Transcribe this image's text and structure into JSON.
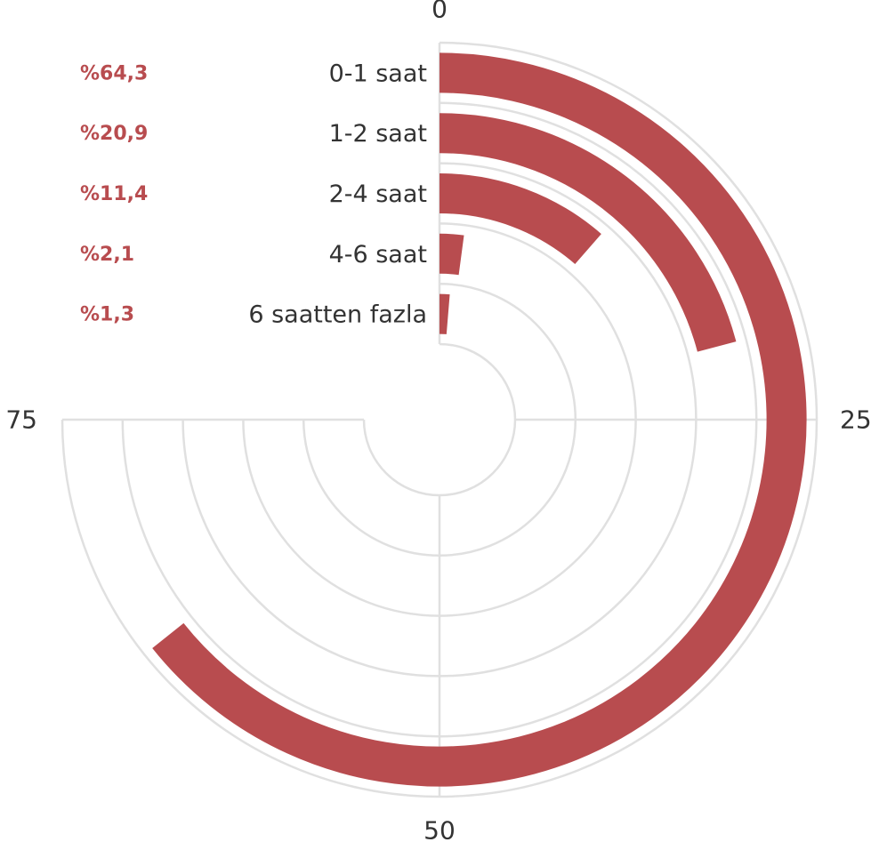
{
  "chart_data": {
    "type": "radial-bar",
    "categories": [
      "0-1 saat",
      "1-2 saat",
      "2-4 saat",
      "4-6 saat",
      "6 saatten fazla"
    ],
    "values": [
      64.3,
      20.9,
      11.4,
      2.1,
      1.3
    ],
    "data_labels": [
      "%64,3",
      "%20,9",
      "%11,4",
      "%2,1",
      "%1,3"
    ],
    "angular_axis": {
      "range": [
        0,
        100
      ],
      "shown_extent": [
        0,
        75
      ],
      "tick_labels": [
        "0",
        "25",
        "50",
        "75"
      ],
      "direction": "clockwise",
      "start": "top"
    },
    "grid": true,
    "legend": "none",
    "colors": {
      "bar": "#b84c4f",
      "percent_label": "#b84c4f",
      "grid": "#e0e0e0",
      "text": "#333333"
    }
  }
}
